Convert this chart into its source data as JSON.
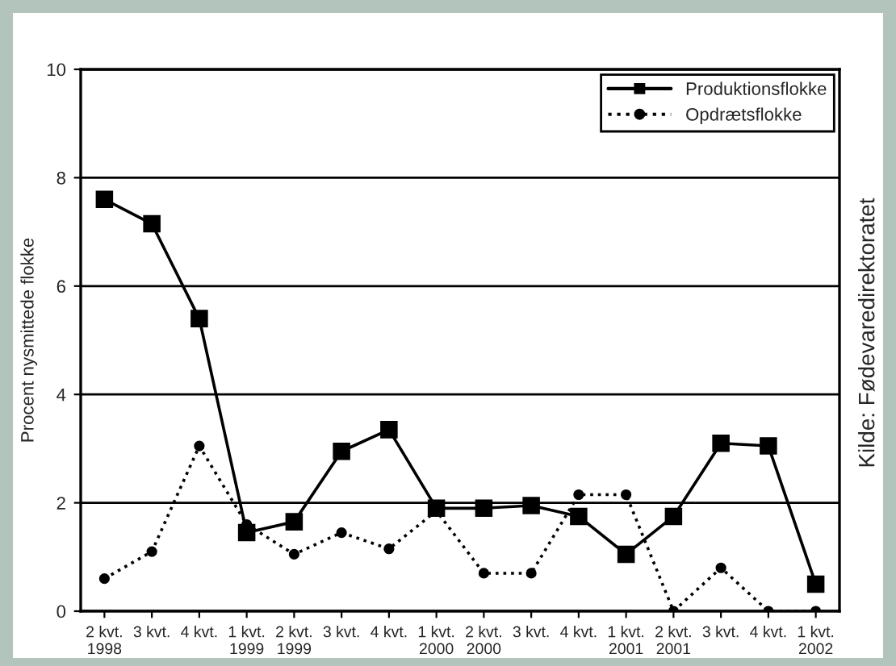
{
  "chart_data": {
    "type": "line",
    "ylabel": "Procent nysmittede flokke",
    "categories": [
      "2 kvt.\n1998",
      "3 kvt.",
      "4 kvt.",
      "1 kvt.\n1999",
      "2 kvt.\n1999",
      "3 kvt.",
      "4 kvt.",
      "1 kvt.\n2000",
      "2 kvt.\n2000",
      "3 kvt.",
      "4 kvt.",
      "1 kvt.\n2001",
      "2 kvt.\n2001",
      "3 kvt.",
      "4 kvt.",
      "1 kvt.\n2002"
    ],
    "series": [
      {
        "name": "Produktionsflokke",
        "color": "#000000",
        "marker": "square",
        "line_style": "solid",
        "values": [
          7.6,
          7.15,
          5.4,
          1.45,
          1.65,
          2.95,
          3.35,
          1.9,
          1.9,
          1.95,
          1.75,
          1.05,
          1.75,
          3.1,
          3.05,
          0.5
        ]
      },
      {
        "name": "Opdrætsflokke",
        "color": "#000000",
        "marker": "circle",
        "line_style": "dotted",
        "values": [
          0.6,
          1.1,
          3.05,
          1.6,
          1.05,
          1.45,
          1.15,
          1.85,
          0.7,
          0.7,
          2.15,
          2.15,
          0.0,
          0.8,
          0.0,
          0.0
        ]
      }
    ],
    "ylim": [
      0,
      10
    ],
    "yticks": [
      0,
      2,
      4,
      6,
      8,
      10
    ],
    "grid": "y",
    "legend": "top right",
    "annotations": [
      "Kilde: Fødevaredirektoratet"
    ]
  }
}
